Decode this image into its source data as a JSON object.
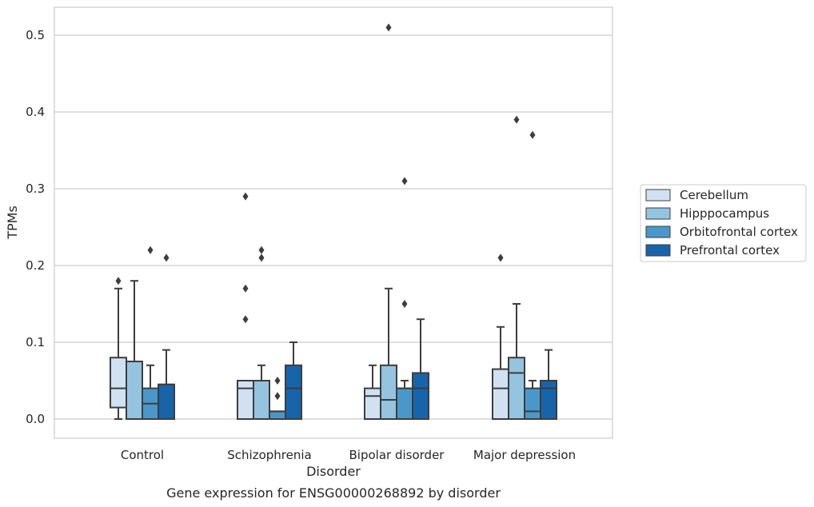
{
  "caption": "Gene expression for ENSG00000268892 by disorder",
  "chart_data": {
    "type": "box",
    "xlabel": "Disorder",
    "ylabel": "TPMs",
    "ylim": [
      -0.025,
      0.537
    ],
    "yticks": [
      "0.0",
      "0.1",
      "0.2",
      "0.3",
      "0.4",
      "0.5"
    ],
    "ytick_values": [
      0,
      0.1,
      0.2,
      0.3,
      0.4,
      0.5
    ],
    "grid": "horizontal",
    "legend_position": "right",
    "categories": [
      "Control",
      "Schizophrenia",
      "Bipolar disorder",
      "Major depression"
    ],
    "series": [
      {
        "name": "Cerebellum",
        "color": "#d0e1f2",
        "boxes": [
          {
            "whislo": 0.0,
            "q1": 0.015,
            "med": 0.04,
            "q3": 0.08,
            "whishi": 0.17,
            "fliers": [
              0.18
            ]
          },
          {
            "whislo": 0.0,
            "q1": 0.0,
            "med": 0.04,
            "q3": 0.05,
            "whishi": 0.05,
            "fliers": [
              0.13,
              0.17,
              0.29
            ]
          },
          {
            "whislo": 0.0,
            "q1": 0.0,
            "med": 0.03,
            "q3": 0.04,
            "whishi": 0.07,
            "fliers": []
          },
          {
            "whislo": 0.0,
            "q1": 0.0,
            "med": 0.04,
            "q3": 0.065,
            "whishi": 0.12,
            "fliers": [
              0.21
            ]
          }
        ]
      },
      {
        "name": "Hipppocampus",
        "color": "#94c4df",
        "boxes": [
          {
            "whislo": 0.0,
            "q1": 0.0,
            "med": 0.075,
            "q3": 0.075,
            "whishi": 0.18,
            "fliers": []
          },
          {
            "whislo": 0.0,
            "q1": 0.0,
            "med": 0.0,
            "q3": 0.05,
            "whishi": 0.07,
            "fliers": [
              0.21,
              0.22
            ]
          },
          {
            "whislo": 0.0,
            "q1": 0.0,
            "med": 0.025,
            "q3": 0.07,
            "whishi": 0.17,
            "fliers": [
              0.51
            ]
          },
          {
            "whislo": 0.0,
            "q1": 0.0,
            "med": 0.06,
            "q3": 0.08,
            "whishi": 0.15,
            "fliers": [
              0.39
            ]
          }
        ]
      },
      {
        "name": "Orbitofrontal cortex",
        "color": "#4a98c9",
        "boxes": [
          {
            "whislo": 0.0,
            "q1": 0.0,
            "med": 0.02,
            "q3": 0.04,
            "whishi": 0.07,
            "fliers": [
              0.22
            ]
          },
          {
            "whislo": 0.0,
            "q1": 0.0,
            "med": 0.01,
            "q3": 0.01,
            "whishi": 0.01,
            "fliers": [
              0.03,
              0.05
            ]
          },
          {
            "whislo": 0.0,
            "q1": 0.0,
            "med": 0.04,
            "q3": 0.04,
            "whishi": 0.05,
            "fliers": [
              0.15,
              0.31
            ]
          },
          {
            "whislo": 0.0,
            "q1": 0.0,
            "med": 0.01,
            "q3": 0.04,
            "whishi": 0.05,
            "fliers": [
              0.37
            ]
          }
        ]
      },
      {
        "name": "Prefrontal cortex",
        "color": "#1764ab",
        "boxes": [
          {
            "whislo": 0.0,
            "q1": 0.0,
            "med": 0.045,
            "q3": 0.045,
            "whishi": 0.09,
            "fliers": [
              0.21
            ]
          },
          {
            "whislo": 0.0,
            "q1": 0.0,
            "med": 0.04,
            "q3": 0.07,
            "whishi": 0.1,
            "fliers": []
          },
          {
            "whislo": 0.0,
            "q1": 0.0,
            "med": 0.04,
            "q3": 0.06,
            "whishi": 0.13,
            "fliers": []
          },
          {
            "whislo": 0.0,
            "q1": 0.0,
            "med": 0.04,
            "q3": 0.05,
            "whishi": 0.09,
            "fliers": []
          }
        ]
      }
    ]
  }
}
